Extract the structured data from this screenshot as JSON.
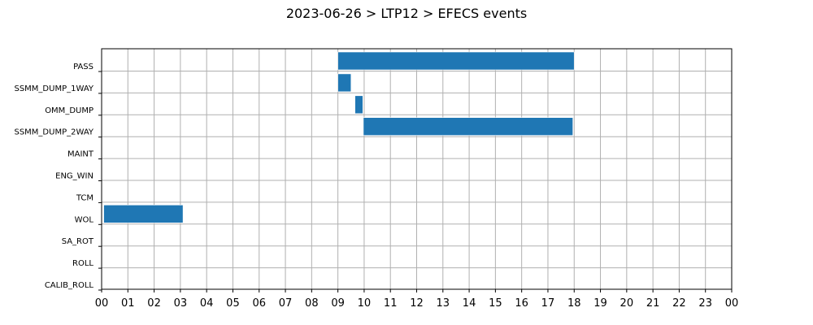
{
  "chart_data": {
    "type": "bar",
    "orientation": "horizontal-timeline",
    "title": "2023-06-26 > LTP12 > EFECS events",
    "xlabel": "",
    "ylabel": "",
    "x_unit": "hour of day",
    "xlim": [
      0,
      24
    ],
    "x_ticks": [
      0,
      1,
      2,
      3,
      4,
      5,
      6,
      7,
      8,
      9,
      10,
      11,
      12,
      13,
      14,
      15,
      16,
      17,
      18,
      19,
      20,
      21,
      22,
      23,
      24
    ],
    "x_tick_labels": [
      "00",
      "01",
      "02",
      "03",
      "04",
      "05",
      "06",
      "07",
      "08",
      "09",
      "10",
      "11",
      "12",
      "13",
      "14",
      "15",
      "16",
      "17",
      "18",
      "19",
      "20",
      "21",
      "22",
      "23",
      "00"
    ],
    "categories": [
      "PASS",
      "SSMM_DUMP_1WAY",
      "OMM_DUMP",
      "SSMM_DUMP_2WAY",
      "MAINT",
      "ENG_WIN",
      "TCM",
      "WOL",
      "SA_ROT",
      "ROLL",
      "CALIB_ROLL"
    ],
    "grid": true,
    "bar_color": "#1f77b4",
    "events": [
      {
        "category": "PASS",
        "start": 9.0,
        "end": 18.0
      },
      {
        "category": "SSMM_DUMP_1WAY",
        "start": 9.0,
        "end": 9.5
      },
      {
        "category": "OMM_DUMP",
        "start": 9.65,
        "end": 9.95
      },
      {
        "category": "SSMM_DUMP_2WAY",
        "start": 9.97,
        "end": 17.95
      },
      {
        "category": "WOL",
        "start": 0.08,
        "end": 3.1
      }
    ]
  }
}
